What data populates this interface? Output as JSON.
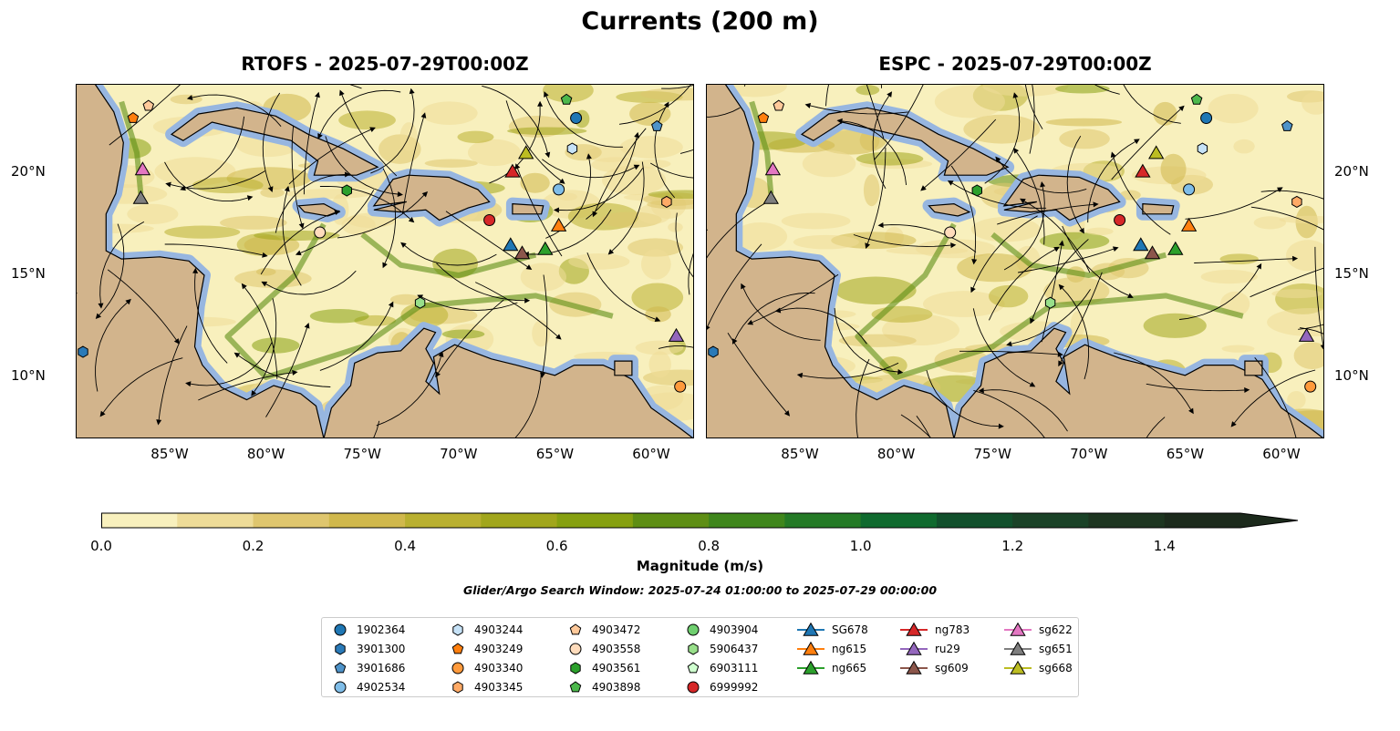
{
  "title": "Currents (200 m)",
  "panels": [
    {
      "title": "RTOFS - 2025-07-29T00:00Z"
    },
    {
      "title": "ESPC - 2025-07-29T00:00Z"
    }
  ],
  "lon_ticks": [
    "85°W",
    "80°W",
    "75°W",
    "70°W",
    "65°W",
    "60°W"
  ],
  "lat_ticks": [
    "20°N",
    "15°N",
    "10°N"
  ],
  "colorbar": {
    "label": "Magnitude (m/s)",
    "ticks": [
      "0.0",
      "0.2",
      "0.4",
      "0.6",
      "0.8",
      "1.0",
      "1.2",
      "1.4"
    ],
    "colors": [
      "#f8f0bd",
      "#eedc98",
      "#dfc66e",
      "#d0b84c",
      "#b9b030",
      "#a1a61c",
      "#86a010",
      "#5e8e14",
      "#3f861c",
      "#247a26",
      "#0f6a2e",
      "#11502c",
      "#1a4227",
      "#1d3520",
      "#1c2a1c"
    ]
  },
  "search_window": "Glider/Argo Search Window: 2025-07-24 01:00:00 to 2025-07-29 00:00:00",
  "colors": {
    "land": "#d2b48c",
    "shallow": "#97b6e0",
    "ocean": "#f8f0bd"
  },
  "markers": [
    {
      "id": "1902364",
      "shape": "circle",
      "color": "#1f77b4",
      "lon": -63.9,
      "lat": 22.7
    },
    {
      "id": "3901300",
      "shape": "hexagon",
      "color": "#2a7ab8",
      "lon": -89.5,
      "lat": 11.25
    },
    {
      "id": "3901686",
      "shape": "pentagon",
      "color": "#4e93c9",
      "lon": -59.7,
      "lat": 22.3
    },
    {
      "id": "4902534",
      "shape": "circle",
      "color": "#7fbde8",
      "lon": -64.8,
      "lat": 19.2
    },
    {
      "id": "4903244",
      "shape": "hexagon",
      "color": "#c6e2f7",
      "lon": -64.1,
      "lat": 21.2
    },
    {
      "id": "4903249",
      "shape": "pentagon",
      "color": "#ff7f0e",
      "lon": -86.9,
      "lat": 22.7
    },
    {
      "id": "4903340",
      "shape": "circle",
      "color": "#ff9a3c",
      "lon": -58.5,
      "lat": 9.55
    },
    {
      "id": "4903345",
      "shape": "hexagon",
      "color": "#ffaa66",
      "lon": -59.2,
      "lat": 18.6
    },
    {
      "id": "4903472",
      "shape": "pentagon",
      "color": "#ffc99a",
      "lon": -86.1,
      "lat": 23.3
    },
    {
      "id": "4903558",
      "shape": "circle",
      "color": "#ffdcbc",
      "lon": -77.2,
      "lat": 17.1
    },
    {
      "id": "4903561",
      "shape": "hexagon",
      "color": "#2ca02c",
      "lon": -75.8,
      "lat": 19.15
    },
    {
      "id": "4903898",
      "shape": "pentagon",
      "color": "#4cb84c",
      "lon": -64.4,
      "lat": 23.6
    },
    {
      "id": "4903904",
      "shape": "circle",
      "color": "#6fcf6f",
      "lon": null,
      "lat": null
    },
    {
      "id": "5906437",
      "shape": "hexagon",
      "color": "#98df8a",
      "lon": -72.0,
      "lat": 13.65
    },
    {
      "id": "6903111",
      "shape": "pentagon",
      "color": "#cfffcf",
      "lon": null,
      "lat": null
    },
    {
      "id": "6999992",
      "shape": "circle",
      "color": "#d62728",
      "lon": -68.4,
      "lat": 17.7
    }
  ],
  "gliders": [
    {
      "id": "SG678",
      "color": "#1f77b4",
      "lon": -67.3,
      "lat": 16.5
    },
    {
      "id": "ng615",
      "color": "#ff7f0e",
      "lon": -64.8,
      "lat": 17.45
    },
    {
      "id": "ng665",
      "color": "#2ca02c",
      "lon": -65.5,
      "lat": 16.3
    },
    {
      "id": "ng783",
      "color": "#d62728",
      "lon": -67.2,
      "lat": 20.1
    },
    {
      "id": "ru29",
      "color": "#9467bd",
      "lon": -58.7,
      "lat": 12.05
    },
    {
      "id": "sg609",
      "color": "#8c564b",
      "lon": -66.7,
      "lat": 16.1
    },
    {
      "id": "sg622",
      "color": "#e377c2",
      "lon": -86.4,
      "lat": 20.2
    },
    {
      "id": "sg651",
      "color": "#7f7f7f",
      "lon": -86.5,
      "lat": 18.8
    },
    {
      "id": "sg668",
      "color": "#bcbd22",
      "lon": -66.5,
      "lat": 21.0
    }
  ]
}
